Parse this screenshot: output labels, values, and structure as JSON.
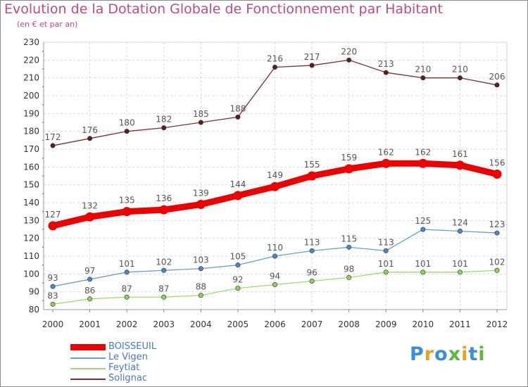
{
  "header": {
    "title": "Evolution de la Dotation Globale de Fonctionnement par Habitant",
    "subtitle": "(en € et par an)"
  },
  "chart_data": {
    "type": "line",
    "title": "Evolution de la Dotation Globale de Fonctionnement par Habitant",
    "subtitle": "(en € et par an)",
    "xlabel": "",
    "ylabel": "",
    "x": [
      "2000",
      "2001",
      "2002",
      "2003",
      "2004",
      "2005",
      "2006",
      "2007",
      "2008",
      "2009",
      "2010",
      "2011",
      "2012"
    ],
    "ylim": [
      80,
      230
    ],
    "yticks": [
      "80",
      "90",
      "100",
      "110",
      "120",
      "130",
      "140",
      "150",
      "160",
      "170",
      "180",
      "190",
      "200",
      "210",
      "220",
      "230"
    ],
    "grid": true,
    "legend_position": "bottom-left",
    "series": [
      {
        "name": "BOISSEUIL",
        "values": [
          127,
          132,
          135,
          136,
          139,
          144,
          149,
          155,
          159,
          162,
          162,
          161,
          156
        ],
        "color": "#ee0000",
        "marker_color": "#ee0000",
        "label_color": "#555555",
        "emphasis": "thick"
      },
      {
        "name": "Le Vigen",
        "values": [
          93,
          97,
          101,
          102,
          103,
          105,
          110,
          113,
          115,
          113,
          125,
          124,
          123
        ],
        "color": "#6a9fd0",
        "marker_color": "#4a88cc",
        "label_color": "#555555",
        "emphasis": "normal"
      },
      {
        "name": "Feytiat",
        "values": [
          83,
          86,
          87,
          87,
          88,
          92,
          94,
          96,
          98,
          101,
          101,
          101,
          102
        ],
        "color": "#9edc6e",
        "marker_color": "#8ed05c",
        "label_color": "#555555",
        "emphasis": "normal"
      },
      {
        "name": "Solignac",
        "values": [
          172,
          176,
          180,
          182,
          185,
          188,
          216,
          217,
          220,
          213,
          210,
          210,
          206
        ],
        "color": "#7a2e2e",
        "marker_color": "#5a1e1e",
        "label_color": "#555555",
        "emphasis": "normal"
      }
    ]
  },
  "logo": {
    "letters": [
      "P",
      "r",
      "o",
      "x",
      "i",
      "t",
      "i"
    ],
    "colors": [
      "#3a8fd8",
      "#f0a020",
      "#3a8fd8",
      "#5ab840",
      "#f0a020",
      "#3a8fd8",
      "#5ab840"
    ]
  }
}
